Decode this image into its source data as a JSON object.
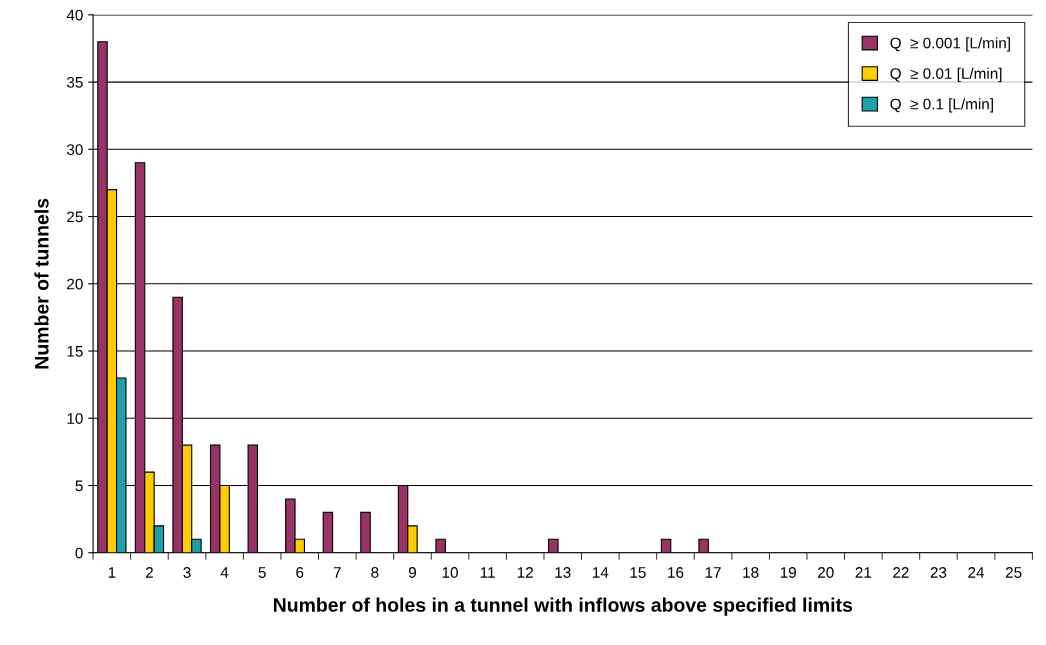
{
  "chart_data": {
    "type": "bar",
    "xlabel": "Number of holes in a tunnel with inflows above specified limits",
    "ylabel": "Number of tunnels",
    "categories": [
      "1",
      "2",
      "3",
      "4",
      "5",
      "6",
      "7",
      "8",
      "9",
      "10",
      "11",
      "12",
      "13",
      "14",
      "15",
      "16",
      "17",
      "18",
      "19",
      "20",
      "21",
      "22",
      "23",
      "24",
      "25"
    ],
    "series": [
      {
        "name": "Q  ≥ 0.001 [L/min]",
        "color": "#993366",
        "values": [
          38,
          29,
          19,
          8,
          8,
          4,
          3,
          3,
          5,
          1,
          0,
          0,
          1,
          0,
          0,
          1,
          1,
          0,
          0,
          0,
          0,
          0,
          0,
          0,
          0
        ]
      },
      {
        "name": "Q  ≥ 0.01 [L/min]",
        "color": "#ffcc00",
        "values": [
          27,
          6,
          8,
          5,
          0,
          1,
          0,
          0,
          2,
          0,
          0,
          0,
          0,
          0,
          0,
          0,
          0,
          0,
          0,
          0,
          0,
          0,
          0,
          0,
          0
        ]
      },
      {
        "name": "Q  ≥ 0.1 [L/min]",
        "color": "#1fa0a8",
        "values": [
          13,
          2,
          1,
          0,
          0,
          0,
          0,
          0,
          0,
          0,
          0,
          0,
          0,
          0,
          0,
          0,
          0,
          0,
          0,
          0,
          0,
          0,
          0,
          0,
          0
        ]
      }
    ],
    "ylim": [
      0,
      40
    ],
    "yticks": [
      0,
      5,
      10,
      15,
      20,
      25,
      30,
      35,
      40
    ],
    "grid": "y",
    "legend": "top right"
  }
}
